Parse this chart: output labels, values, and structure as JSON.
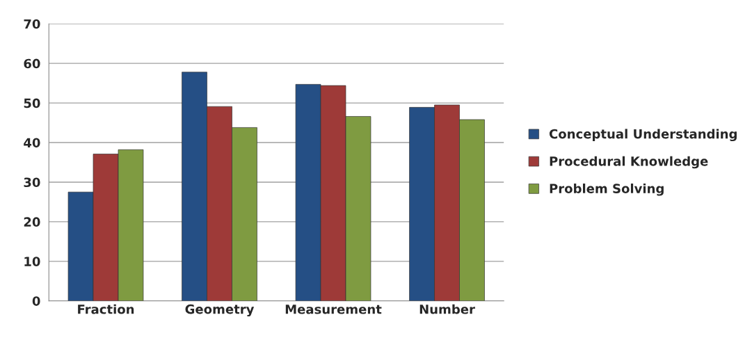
{
  "chart_data": {
    "type": "bar",
    "categories": [
      "Fraction",
      "Geometry",
      "Measurement",
      "Number"
    ],
    "series": [
      {
        "name": "Conceptual Understanding",
        "color": "#254f85",
        "values": [
          27.5,
          57.8,
          54.7,
          48.9
        ]
      },
      {
        "name": "Procedural Knowledge",
        "color": "#9e3a38",
        "values": [
          37.1,
          49.1,
          54.4,
          49.5
        ]
      },
      {
        "name": "Problem Solving",
        "color": "#7f9b41",
        "values": [
          38.2,
          43.8,
          46.6,
          45.8
        ]
      }
    ],
    "ylim": [
      0,
      70
    ],
    "yticks": [
      0,
      10,
      20,
      30,
      40,
      50,
      60,
      70
    ],
    "grid": "y",
    "legend": "right"
  }
}
